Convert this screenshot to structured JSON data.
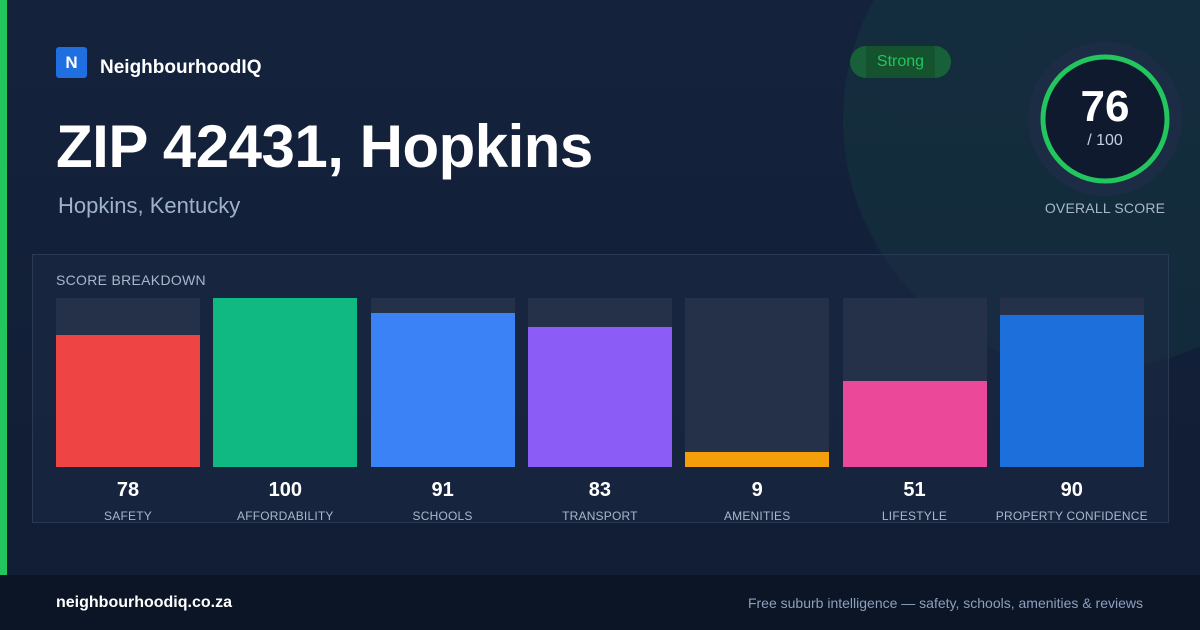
{
  "brand": {
    "logo_letter": "N",
    "name": "NeighbourhoodIQ"
  },
  "header": {
    "title": "ZIP 42431, Hopkins",
    "subtitle": "Hopkins, Kentucky"
  },
  "rating_badge": {
    "label": "Strong"
  },
  "overall_score": {
    "value": "76",
    "max_label": "/ 100",
    "caption": "OVERALL SCORE",
    "fraction": 0.76
  },
  "breakdown": {
    "title": "SCORE BREAKDOWN",
    "scores": [
      {
        "label": "SAFETY",
        "value": 78,
        "color": "#ef4444"
      },
      {
        "label": "AFFORDABILITY",
        "value": 100,
        "color": "#10b981"
      },
      {
        "label": "SCHOOLS",
        "value": 91,
        "color": "#3b82f6"
      },
      {
        "label": "TRANSPORT",
        "value": 83,
        "color": "#8b5cf6"
      },
      {
        "label": "AMENITIES",
        "value": 9,
        "color": "#f59e0b"
      },
      {
        "label": "LIFESTYLE",
        "value": 51,
        "color": "#ec4899"
      },
      {
        "label": "PROPERTY CONFIDENCE",
        "value": 90,
        "color": "#1d6fdc"
      }
    ]
  },
  "footer": {
    "domain": "neighbourhoodiq.co.za",
    "tagline": "Free suburb intelligence — safety, schools, amenities & reviews"
  },
  "colors": {
    "accent": "#22c55e",
    "background": "#111d33"
  }
}
